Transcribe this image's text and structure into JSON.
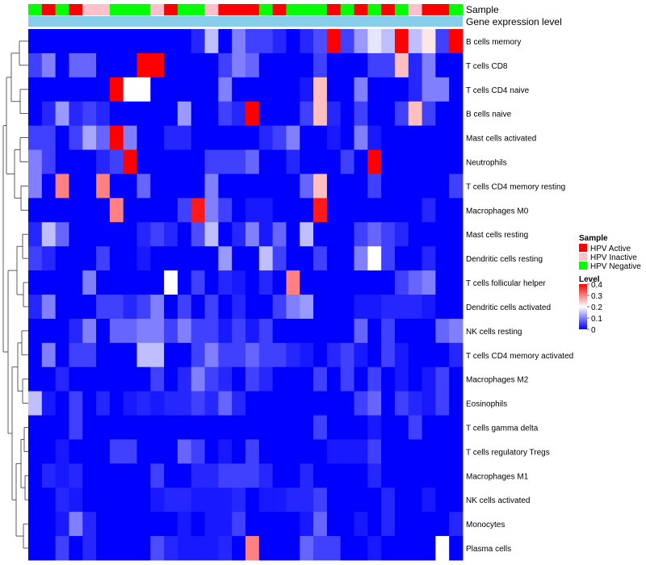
{
  "chart_data": {
    "type": "heatmap",
    "title": "",
    "annotation_labels": {
      "sample": "Sample",
      "gene": "Gene expression level"
    },
    "rows": [
      "B cells memory",
      "T cells CD8",
      "T cells CD4 naive",
      "B cells naive",
      "Mast cells activated",
      "Neutrophils",
      "T cells CD4 memory resting",
      "Macrophages M0",
      "Mast cells resting",
      "Dendritic cells resting",
      "T cells follicular helper",
      "Dendritic cells activated",
      "NK cells resting",
      "T cells CD4 memory activated",
      "Macrophages M2",
      "Eosinophils",
      "T cells gamma delta",
      "T cells regulatory  Tregs",
      "Macrophages M1",
      "NK cells activated",
      "Monocytes",
      "Plasma cells"
    ],
    "columns_sample": [
      "N",
      "A",
      "N",
      "A",
      "I",
      "I",
      "N",
      "N",
      "N",
      "I",
      "A",
      "N",
      "N",
      "I",
      "A",
      "A",
      "A",
      "N",
      "A",
      "N",
      "N",
      "N",
      "A",
      "N",
      "A",
      "N",
      "A",
      "N",
      "I",
      "A",
      "A",
      "N"
    ],
    "values": [
      [
        0,
        0,
        0,
        0,
        0,
        0,
        0,
        0,
        0,
        0,
        0,
        0,
        0.03,
        0.15,
        0,
        0.1,
        0.05,
        0.05,
        0.03,
        0,
        0.03,
        0.06,
        0.4,
        0.05,
        0.12,
        0.18,
        0.15,
        0.4,
        0.15,
        0.22,
        0.05,
        0.4
      ],
      [
        0.05,
        0.1,
        0,
        0.08,
        0.08,
        0,
        0,
        0,
        0.4,
        0.4,
        0,
        0,
        0,
        0,
        0.05,
        0.1,
        0.08,
        0,
        0,
        0,
        0,
        0.05,
        0,
        0,
        0,
        0.05,
        0.05,
        0.25,
        0.03,
        0.1,
        0,
        0
      ],
      [
        0,
        0,
        0,
        0,
        0,
        0,
        0.4,
        0.2,
        0.2,
        0,
        0,
        0,
        0,
        0,
        0.1,
        0,
        0,
        0,
        0,
        0,
        0.02,
        0.25,
        0,
        0,
        0.1,
        0,
        0,
        0,
        0.03,
        0.1,
        0.1,
        0
      ],
      [
        0,
        0.03,
        0.12,
        0.03,
        0.05,
        0.03,
        0,
        0,
        0,
        0,
        0,
        0.12,
        0,
        0,
        0.05,
        0.03,
        0.4,
        0,
        0,
        0,
        0.05,
        0.25,
        0.03,
        0,
        0.05,
        0,
        0,
        0.05,
        0.25,
        0.05,
        0,
        0
      ],
      [
        0.05,
        0.05,
        0,
        0.05,
        0.13,
        0.08,
        0.4,
        0.1,
        0,
        0,
        0.03,
        0.03,
        0,
        0,
        0,
        0,
        0,
        0.03,
        0.05,
        0.1,
        0,
        0,
        0.02,
        0,
        0.1,
        0.02,
        0,
        0,
        0,
        0,
        0,
        0
      ],
      [
        0.1,
        0.05,
        0,
        0,
        0,
        0.03,
        0.05,
        0.4,
        0,
        0,
        0,
        0,
        0,
        0.05,
        0.05,
        0.05,
        0.08,
        0,
        0,
        0.03,
        0,
        0,
        0,
        0.05,
        0,
        0.4,
        0,
        0,
        0,
        0,
        0,
        0
      ],
      [
        0.1,
        0,
        0.3,
        0,
        0,
        0.3,
        0,
        0,
        0.08,
        0,
        0,
        0,
        0,
        0.1,
        0,
        0,
        0,
        0,
        0,
        0,
        0.08,
        0.25,
        0,
        0,
        0,
        0.05,
        0,
        0,
        0,
        0,
        0,
        0.05
      ],
      [
        0,
        0,
        0,
        0,
        0,
        0,
        0.3,
        0,
        0,
        0,
        0,
        0.05,
        0.38,
        0.1,
        0.05,
        0,
        0.02,
        0.02,
        0,
        0,
        0,
        0.38,
        0,
        0,
        0,
        0,
        0,
        0,
        0,
        0.03,
        0,
        0
      ],
      [
        0.03,
        0.15,
        0.08,
        0,
        0,
        0,
        0,
        0,
        0.03,
        0.05,
        0.03,
        0,
        0.06,
        0.15,
        0,
        0.03,
        0.1,
        0.02,
        0.08,
        0,
        0.15,
        0,
        0,
        0,
        0.05,
        0.08,
        0.05,
        0.03,
        0,
        0,
        0,
        0
      ],
      [
        0.05,
        0.03,
        0,
        0,
        0,
        0.05,
        0,
        0,
        0.02,
        0,
        0,
        0,
        0,
        0,
        0.12,
        0,
        0,
        0.15,
        0.05,
        0,
        0,
        0.05,
        0,
        0,
        0.1,
        0.2,
        0.05,
        0,
        0,
        0.03,
        0,
        0
      ],
      [
        0,
        0,
        0,
        0,
        0.1,
        0,
        0,
        0,
        0,
        0,
        0.2,
        0,
        0.05,
        0,
        0.03,
        0.02,
        0,
        0.03,
        0,
        0.3,
        0,
        0,
        0,
        0,
        0,
        0,
        0,
        0.05,
        0.08,
        0.1,
        0,
        0
      ],
      [
        0.03,
        0.1,
        0,
        0,
        0,
        0.05,
        0.05,
        0.03,
        0.05,
        0.1,
        0,
        0.05,
        0,
        0.05,
        0,
        0.03,
        0,
        0,
        0.05,
        0.1,
        0.12,
        0,
        0,
        0,
        0.02,
        0.02,
        0.03,
        0.03,
        0.03,
        0.02,
        0,
        0
      ],
      [
        0,
        0,
        0,
        0.03,
        0.1,
        0,
        0.08,
        0.08,
        0.1,
        0.1,
        0.05,
        0.1,
        0.05,
        0.05,
        0.02,
        0.05,
        0.02,
        0.05,
        0,
        0,
        0,
        0,
        0,
        0,
        0.08,
        0,
        0.05,
        0,
        0,
        0,
        0.08,
        0.1
      ],
      [
        0,
        0.1,
        0,
        0.05,
        0.05,
        0,
        0,
        0,
        0.15,
        0.15,
        0,
        0,
        0.05,
        0.1,
        0.05,
        0.05,
        0.08,
        0.05,
        0.05,
        0.03,
        0.02,
        0,
        0.03,
        0.05,
        0.02,
        0,
        0.05,
        0.02,
        0,
        0,
        0,
        0.03
      ],
      [
        0,
        0,
        0.03,
        0,
        0,
        0,
        0,
        0,
        0,
        0.05,
        0,
        0.03,
        0.1,
        0.05,
        0.03,
        0,
        0.05,
        0.03,
        0,
        0,
        0,
        0.05,
        0,
        0.05,
        0,
        0.05,
        0,
        0.02,
        0,
        0.02,
        0.05,
        0
      ],
      [
        0.15,
        0.02,
        0,
        0.05,
        0,
        0.03,
        0,
        0.02,
        0.03,
        0.02,
        0.03,
        0.03,
        0.05,
        0.03,
        0.08,
        0.03,
        0,
        0,
        0,
        0,
        0,
        0,
        0,
        0,
        0.05,
        0.08,
        0,
        0.05,
        0.03,
        0.02,
        0.05,
        0
      ],
      [
        0,
        0,
        0,
        0.05,
        0,
        0,
        0,
        0,
        0,
        0,
        0,
        0,
        0,
        0,
        0,
        0,
        0,
        0,
        0,
        0,
        0,
        0.05,
        0,
        0,
        0,
        0.02,
        0,
        0,
        0.05,
        0,
        0,
        0
      ],
      [
        0,
        0,
        0.02,
        0,
        0,
        0,
        0.05,
        0.05,
        0,
        0,
        0,
        0.08,
        0.05,
        0,
        0.02,
        0,
        0.05,
        0,
        0,
        0,
        0,
        0,
        0.02,
        0.02,
        0.02,
        0.05,
        0,
        0,
        0,
        0,
        0,
        0
      ],
      [
        0,
        0.03,
        0.02,
        0.03,
        0,
        0,
        0,
        0,
        0,
        0.05,
        0,
        0,
        0.03,
        0.03,
        0.05,
        0.05,
        0.05,
        0.03,
        0,
        0,
        0.03,
        0,
        0,
        0,
        0,
        0.03,
        0,
        0,
        0,
        0,
        0,
        0
      ],
      [
        0,
        0,
        0.03,
        0.02,
        0,
        0,
        0,
        0,
        0,
        0.02,
        0.03,
        0.03,
        0.02,
        0.02,
        0.02,
        0.03,
        0,
        0.02,
        0.02,
        0.03,
        0.03,
        0.05,
        0,
        0,
        0,
        0,
        0.03,
        0,
        0,
        0.02,
        0,
        0
      ],
      [
        0,
        0,
        0.02,
        0.1,
        0.03,
        0,
        0,
        0,
        0,
        0,
        0,
        0.02,
        0,
        0.02,
        0.02,
        0.05,
        0,
        0,
        0,
        0,
        0.02,
        0.08,
        0,
        0,
        0.02,
        0,
        0.03,
        0,
        0,
        0,
        0,
        0.03
      ],
      [
        0,
        0,
        0.05,
        0,
        0.03,
        0,
        0,
        0,
        0,
        0.06,
        0.03,
        0.02,
        0.02,
        0.02,
        0.03,
        0,
        0.3,
        0,
        0,
        0,
        0.08,
        0.05,
        0.05,
        0,
        0,
        0.02,
        0,
        0,
        0,
        0,
        0.2,
        0
      ]
    ],
    "color_scale": {
      "min": 0,
      "max": 0.4,
      "colors": [
        "#0000ff",
        "#ffffff",
        "#ff0000"
      ]
    },
    "legend_sample": {
      "title": "Sample",
      "entries": [
        {
          "code": "A",
          "label": "HPV Active",
          "color": "#ff0000"
        },
        {
          "code": "I",
          "label": "HPV Inactive",
          "color": "#ffc0cb"
        },
        {
          "code": "N",
          "label": "HPV Negative",
          "color": "#00ff00"
        }
      ]
    },
    "legend_level": {
      "title": "Level",
      "ticks": [
        "0.4",
        "0.3",
        "0.2",
        "0.1",
        "0"
      ],
      "tick_values": [
        0.4,
        0.3,
        0.2,
        0.1,
        0
      ]
    },
    "gene_bar_color": "#87ceeb"
  }
}
